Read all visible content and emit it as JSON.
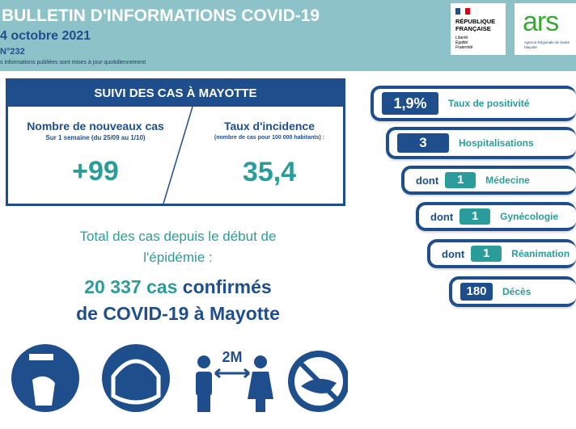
{
  "header": {
    "title": "BULLETIN D'INFORMATIONS COVID-19",
    "date": "4 octobre 2021",
    "number": "N°232",
    "note": "s informations publiées sont mises à jour quotidiennement"
  },
  "logos": {
    "rf_name": [
      "RÉPUBLIQUE",
      "FRANÇAISE"
    ],
    "rf_motto": [
      "Liberté",
      "Égalité",
      "Fraternité"
    ],
    "ars": "ars",
    "ars_name": [
      "Agence Régionale de Santé",
      "Mayotte"
    ]
  },
  "suivi": {
    "title": "SUIVI DES CAS À MAYOTTE",
    "left": {
      "title": "Nombre de nouveaux cas",
      "subtitle": "Sur 1 semaine (du 25/09 au 1/10)",
      "value": "+99"
    },
    "right": {
      "title": "Taux d'incidence",
      "subtitle": "(nombre de cas pour 100 000 habitants) :",
      "value": "35,4"
    }
  },
  "total": {
    "line1": "Total des cas depuis le début de",
    "line2": "l'épidémie :",
    "count": "20 337 cas",
    "confirmed": "confirmés",
    "line4": "de COVID-19 à Mayotte"
  },
  "indicators": [
    {
      "value": "1,9%",
      "label": "Taux de positivité"
    },
    {
      "value": "3",
      "label": "Hospitalisations"
    },
    {
      "prefix": "dont",
      "value": "1",
      "label": "Médecine"
    },
    {
      "prefix": "dont",
      "value": "1",
      "label": "Gynécologie"
    },
    {
      "prefix": "dont",
      "value": "1",
      "label": "Réanimation"
    },
    {
      "value": "180",
      "label": "Décès"
    }
  ],
  "icons": {
    "distance": "2M"
  }
}
